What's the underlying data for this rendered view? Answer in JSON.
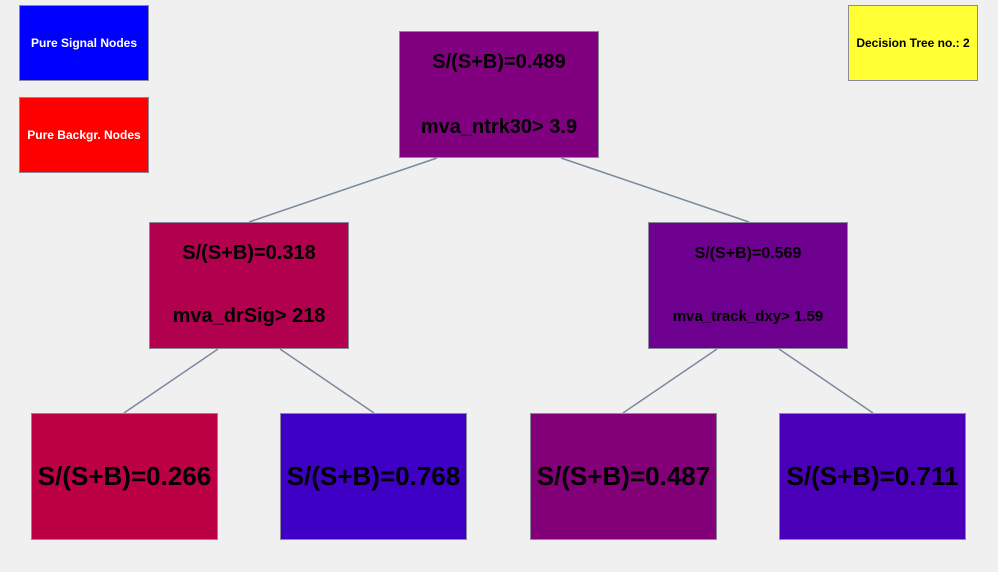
{
  "legend": {
    "signal_label": "Pure Signal Nodes",
    "signal_color": "#0000ff",
    "background_label": "Pure Backgr. Nodes",
    "background_color": "#ff0000"
  },
  "tree_label": "Decision Tree no.: 2",
  "tree_label_color": "#ffff33",
  "edge_color": "#7a8aa0",
  "nodes": {
    "root": {
      "purity": "S/(S+B)=0.489",
      "cut": "mva_ntrk30>  3.9",
      "color": "#800080"
    },
    "left": {
      "purity": "S/(S+B)=0.318",
      "cut": "mva_drSig>  218",
      "color": "#b0004e"
    },
    "right": {
      "purity": "S/(S+B)=0.569",
      "cut": "mva_track_dxy> 1.59",
      "color": "#6e0090"
    }
  },
  "leaves": [
    {
      "purity": "S/(S+B)=0.266",
      "color": "#bb0044"
    },
    {
      "purity": "S/(S+B)=0.768",
      "color": "#3e00c4"
    },
    {
      "purity": "S/(S+B)=0.487",
      "color": "#830079"
    },
    {
      "purity": "S/(S+B)=0.711",
      "color": "#4a00b8"
    }
  ]
}
